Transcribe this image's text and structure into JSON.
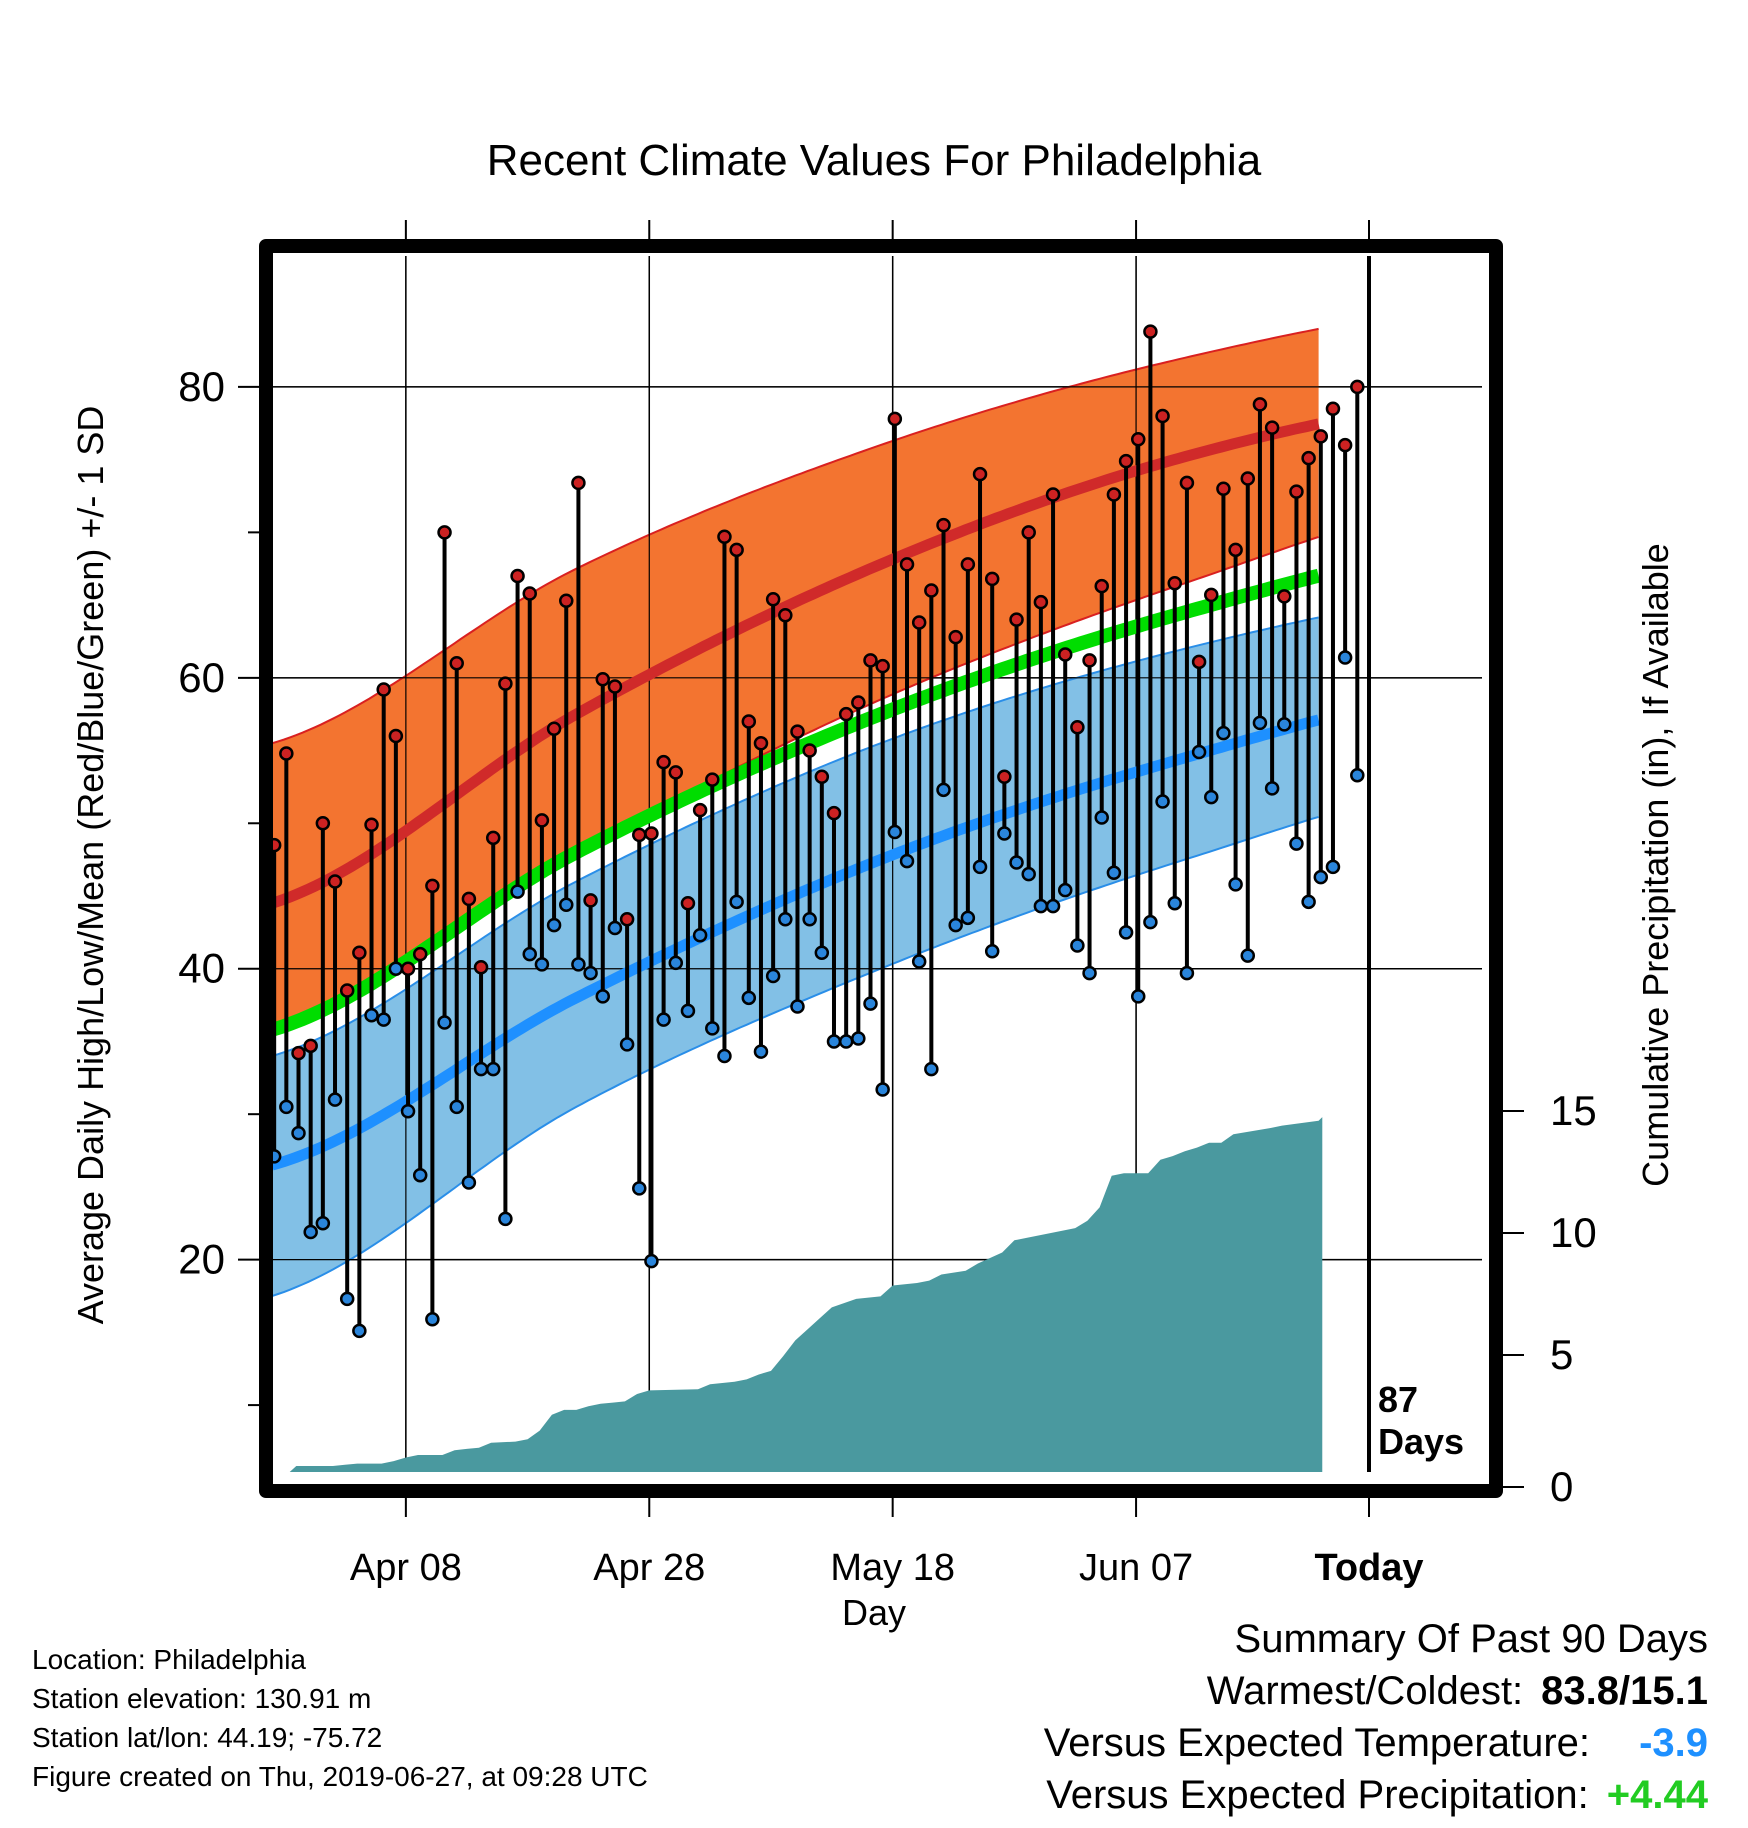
{
  "chart_data": {
    "type": "line",
    "title": "Recent Climate Values For Philadelphia",
    "xlabel": "Day",
    "ylabel_left": "Average Daily High/Low/Mean (Red/Blue/Green) +/- 1 SD",
    "ylabel_right": "Cumulative Precipitation (in), If Available",
    "x_ticks": [
      {
        "label": "Apr 08",
        "day": 11
      },
      {
        "label": "Apr 28",
        "day": 31
      },
      {
        "label": "May 18",
        "day": 51
      },
      {
        "label": "Jun 07",
        "day": 71
      },
      {
        "label": "Today",
        "day": 91
      }
    ],
    "y_left_ticks": [
      20,
      40,
      60,
      80
    ],
    "y_left_minor_ticks": [
      10,
      30,
      50,
      70
    ],
    "y_left_range": [
      5.4,
      89
    ],
    "y_right_ticks": [
      0,
      5,
      10,
      15
    ],
    "y_right_range": [
      0,
      15
    ],
    "grid": true,
    "today_marker": {
      "day": 91,
      "label_line1": "87",
      "label_line2": "Days"
    },
    "day_range": [
      0,
      100
    ],
    "first_obs_day": 1,
    "colors": {
      "high_band": "#f37430",
      "high_mean": "#d02a2a",
      "low_band": "#82c0e6",
      "low_mean": "#1e90ff",
      "mean_line": "#00dd00",
      "precip": "#4a999f",
      "high_point": "#cc2222",
      "low_point": "#2a85db",
      "band_edge_high": "#d92020",
      "band_edge_low": "#2a8ee8"
    },
    "normals": {
      "days": [
        0,
        25,
        50,
        75,
        100
      ],
      "high_mean": [
        44.5,
        57.5,
        67.8,
        75.2,
        79.3
      ],
      "high_upper": [
        55.5,
        67.5,
        76.0,
        82.0,
        85.7
      ],
      "high_lower": [
        35.5,
        48.0,
        58.5,
        66.5,
        72.7
      ],
      "mean": [
        35.8,
        48.0,
        57.5,
        64.5,
        69.3
      ],
      "low_mean": [
        26.5,
        38.0,
        47.5,
        54.5,
        59.5
      ],
      "low_upper": [
        34.0,
        46.0,
        55.5,
        62.0,
        66.0
      ],
      "low_lower": [
        17.5,
        30.5,
        40.0,
        47.5,
        53.2
      ]
    },
    "series": [
      {
        "name": "High",
        "values": [
          48.5,
          54.8,
          34.2,
          34.7,
          50.0,
          46.0,
          38.5,
          41.1,
          49.9,
          59.2,
          56.0,
          40.0,
          41.0,
          45.7,
          70.0,
          61.0,
          44.8,
          40.1,
          49.0,
          59.6,
          67.0,
          65.8,
          50.2,
          56.5,
          65.3,
          73.4,
          44.7,
          59.9,
          59.4,
          43.4,
          49.2,
          49.3,
          54.2,
          53.5,
          44.5,
          50.9,
          53.0,
          69.7,
          68.8,
          57.0,
          55.5,
          65.4,
          64.3,
          56.3,
          55.0,
          53.2,
          50.7,
          57.5,
          58.3,
          61.2,
          60.8,
          77.8,
          67.8,
          63.8,
          66.0,
          70.5,
          62.8,
          67.8,
          74.0,
          66.8,
          53.2,
          64.0,
          70.0,
          65.2,
          72.6,
          61.6,
          56.6,
          61.2,
          66.3,
          72.6,
          74.9,
          76.4,
          83.8,
          78.0,
          66.5,
          73.4,
          61.1,
          65.7,
          73.0,
          68.8,
          73.7,
          78.8,
          77.2,
          65.6,
          72.8,
          75.1,
          76.6,
          78.5,
          76.0,
          80.0
        ],
        "lows": [
          27.1,
          30.5,
          28.7,
          21.9,
          22.5,
          31.0,
          17.3,
          15.1,
          36.8,
          36.5,
          40.0,
          30.2,
          25.8,
          15.9,
          36.3,
          30.5,
          25.3,
          33.1,
          33.1,
          22.8,
          45.3,
          41.0,
          40.3,
          43.0,
          44.4,
          40.3,
          39.7,
          38.1,
          42.8,
          34.8,
          24.9,
          19.9,
          36.5,
          40.4,
          37.1,
          42.3,
          35.9,
          34.0,
          44.6,
          38.0,
          34.3,
          39.5,
          43.4,
          37.4,
          43.4,
          41.1,
          35.0,
          35.0,
          35.2,
          37.6,
          31.7,
          49.4,
          47.4,
          40.5,
          33.1,
          52.3,
          43.0,
          43.5,
          47.0,
          41.2,
          49.3,
          47.3,
          46.5,
          44.3,
          44.3,
          45.4,
          41.6,
          39.7,
          50.4,
          46.6,
          42.5,
          38.1,
          43.2,
          51.5,
          44.5,
          39.7,
          54.9,
          51.8,
          56.2,
          45.8,
          40.9,
          56.9,
          52.4,
          56.8,
          48.6,
          44.6,
          46.3,
          47.0,
          61.4,
          53.3
        ]
      }
    ],
    "precip": {
      "days": [
        0,
        1,
        2,
        5,
        6,
        7,
        9,
        10,
        11,
        12,
        14,
        15,
        16,
        17,
        18,
        20,
        21,
        22,
        23,
        24,
        25,
        26,
        27,
        28,
        29,
        30,
        31,
        35,
        36,
        38,
        39,
        40,
        41,
        42,
        43,
        44,
        45,
        46,
        48,
        50,
        51,
        53,
        54,
        55,
        57,
        58,
        60,
        61,
        62,
        64,
        66,
        67,
        68,
        69,
        70,
        72,
        73,
        74,
        75,
        76,
        77,
        78,
        79,
        82,
        83,
        86,
        87,
        91,
        100
      ],
      "values": [
        0,
        0,
        0.45,
        0.45,
        0.5,
        0.55,
        0.55,
        0.65,
        0.8,
        0.9,
        0.9,
        1.1,
        1.15,
        1.2,
        1.4,
        1.45,
        1.55,
        1.9,
        2.55,
        2.75,
        2.75,
        2.9,
        3.0,
        3.05,
        3.1,
        3.4,
        3.55,
        3.6,
        3.8,
        3.9,
        4.0,
        4.2,
        4.35,
        4.95,
        5.6,
        6.05,
        6.5,
        6.95,
        7.3,
        7.4,
        7.85,
        7.95,
        8.05,
        8.3,
        8.45,
        8.75,
        9.2,
        9.7,
        9.8,
        10.0,
        10.2,
        10.5,
        11.05,
        12.35,
        12.45,
        12.45,
        13.0,
        13.15,
        13.35,
        13.5,
        13.7,
        13.7,
        14.05,
        14.3,
        14.4,
        14.6,
        14.75,
        15.0,
        15.0
      ]
    }
  },
  "info": {
    "location": "Location: Philadelphia",
    "elevation": "Station elevation: 130.91 m",
    "latlon": "Station lat/lon: 44.19; -75.72",
    "created": "Figure created on Thu, 2019-06-27, at 09:28 UTC"
  },
  "summary": {
    "title": "Summary Of Past 90 Days",
    "warm_cold_label": "Warmest/Coldest:",
    "warm_cold_value": "83.8/15.1",
    "temp_label": "Versus Expected Temperature:",
    "temp_value": "-3.9",
    "temp_color": "#1e90ff",
    "precip_label": "Versus Expected Precipitation:",
    "precip_value": "+4.44",
    "precip_color": "#22cc22"
  }
}
